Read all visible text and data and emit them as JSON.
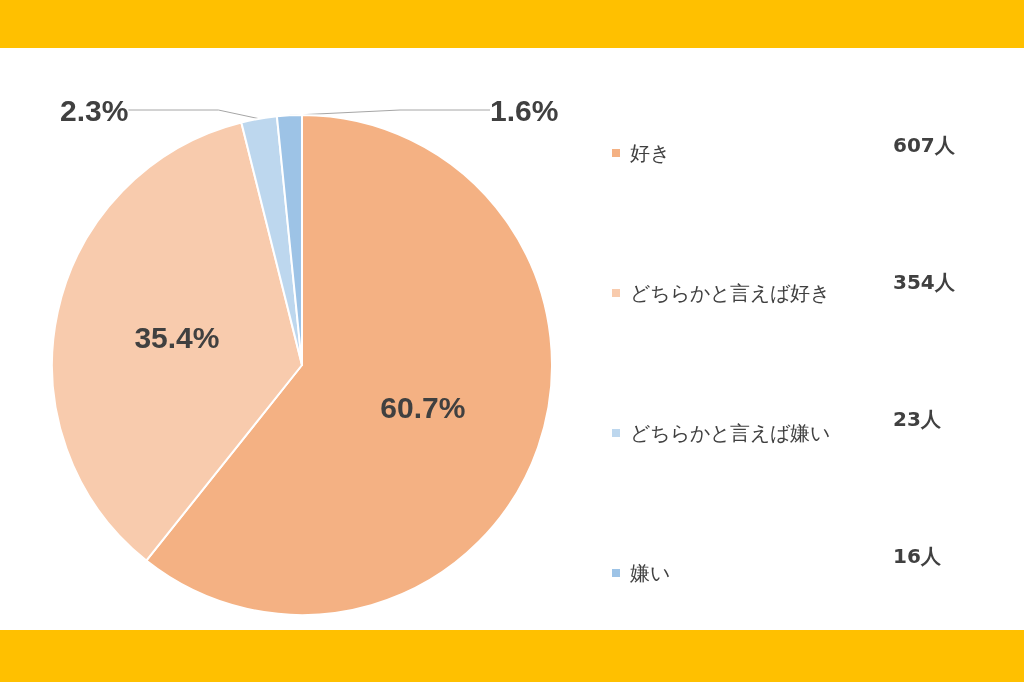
{
  "chart_data": {
    "type": "pie",
    "categories": [
      "好き",
      "どちらかと言えば好き",
      "どちらかと言えば嫌い",
      "嫌い"
    ],
    "values": [
      60.7,
      35.4,
      2.3,
      1.6
    ],
    "value_labels": [
      "60.7%",
      "35.4%",
      "2.3%",
      "1.6%"
    ],
    "colors": [
      "#f4b183",
      "#f8cbad",
      "#bdd7ee",
      "#9dc3e6"
    ],
    "annotations": [
      "607人",
      "354人",
      "23人",
      "16人"
    ],
    "legend": "right"
  }
}
